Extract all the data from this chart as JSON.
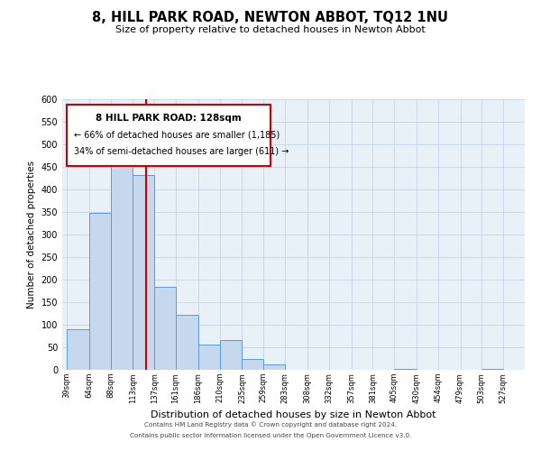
{
  "title": "8, HILL PARK ROAD, NEWTON ABBOT, TQ12 1NU",
  "subtitle": "Size of property relative to detached houses in Newton Abbot",
  "xlabel": "Distribution of detached houses by size in Newton Abbot",
  "ylabel": "Number of detached properties",
  "bar_left_edges": [
    39,
    64,
    88,
    113,
    137,
    161,
    186,
    210,
    235,
    259,
    283,
    308,
    332,
    357,
    381,
    405,
    430,
    454,
    479,
    503
  ],
  "bar_widths": [
    25,
    24,
    25,
    24,
    24,
    25,
    24,
    25,
    24,
    24,
    25,
    24,
    25,
    24,
    24,
    25,
    24,
    25,
    24,
    24
  ],
  "bar_heights": [
    90,
    348,
    472,
    432,
    185,
    123,
    57,
    67,
    25,
    13,
    0,
    0,
    0,
    0,
    0,
    3,
    0,
    0,
    0,
    3
  ],
  "bar_color": "#c5d8ed",
  "bar_edgecolor": "#5b9bd5",
  "tick_labels": [
    "39sqm",
    "64sqm",
    "88sqm",
    "113sqm",
    "137sqm",
    "161sqm",
    "186sqm",
    "210sqm",
    "235sqm",
    "259sqm",
    "283sqm",
    "308sqm",
    "332sqm",
    "357sqm",
    "381sqm",
    "405sqm",
    "430sqm",
    "454sqm",
    "479sqm",
    "503sqm",
    "527sqm"
  ],
  "ylim": [
    0,
    600
  ],
  "yticks": [
    0,
    50,
    100,
    150,
    200,
    250,
    300,
    350,
    400,
    450,
    500,
    550,
    600
  ],
  "xlim": [
    34,
    551
  ],
  "property_line_x": 128,
  "property_line_color": "#cc0000",
  "annotation_title": "8 HILL PARK ROAD: 128sqm",
  "annotation_line1": "← 66% of detached houses are smaller (1,185)",
  "annotation_line2": "34% of semi-detached houses are larger (611) →",
  "grid_color": "#c8d4e3",
  "background_color": "#e8f0f8",
  "footer1": "Contains HM Land Registry data © Crown copyright and database right 2024.",
  "footer2": "Contains public sector information licensed under the Open Government Licence v3.0."
}
